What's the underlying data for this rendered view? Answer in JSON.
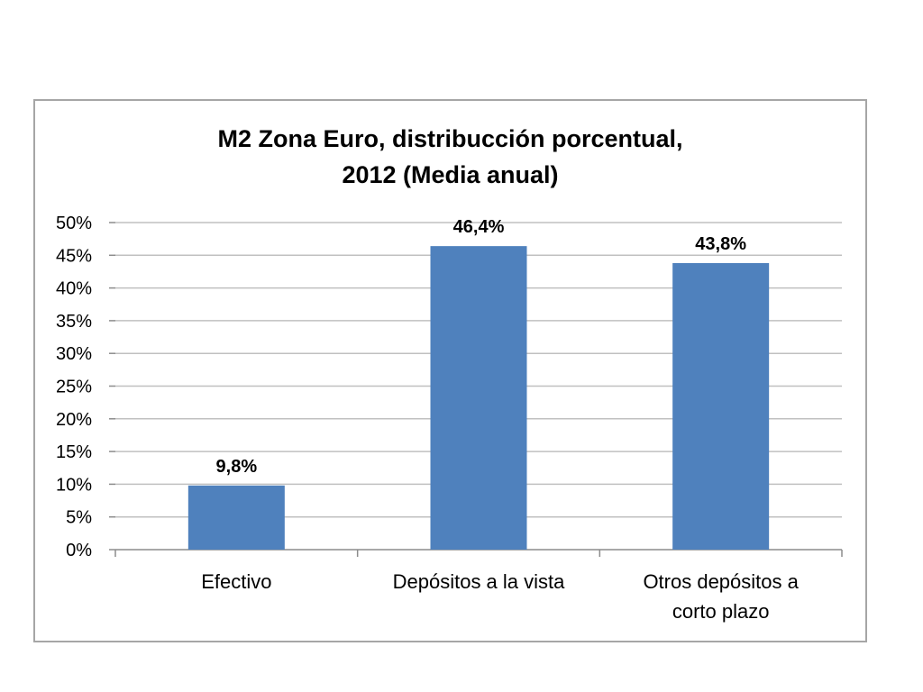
{
  "chart_data": {
    "type": "bar",
    "title": [
      "M2 Zona Euro,  distribucción porcentual,",
      "2012 (Media anual)"
    ],
    "categories": [
      [
        "Efectivo"
      ],
      [
        "Depósitos a la vista"
      ],
      [
        "Otros depósitos a",
        "corto plazo"
      ]
    ],
    "values": [
      9.8,
      46.4,
      43.8
    ],
    "data_labels": [
      "9,8%",
      "46,4%",
      "43,8%"
    ],
    "ylim": [
      0,
      50
    ],
    "y_ticks": [
      0,
      5,
      10,
      15,
      20,
      25,
      30,
      35,
      40,
      45,
      50
    ],
    "y_tick_labels": [
      "0%",
      "5%",
      "10%",
      "15%",
      "20%",
      "25%",
      "30%",
      "35%",
      "40%",
      "45%",
      "50%"
    ],
    "xlabel": "",
    "ylabel": "",
    "grid": true,
    "legend": "none",
    "colors": {
      "bar": "#4f81bd",
      "grid": "#c0c0c0",
      "axis": "#8c8c8c",
      "frame": "#a6a6a6"
    }
  }
}
